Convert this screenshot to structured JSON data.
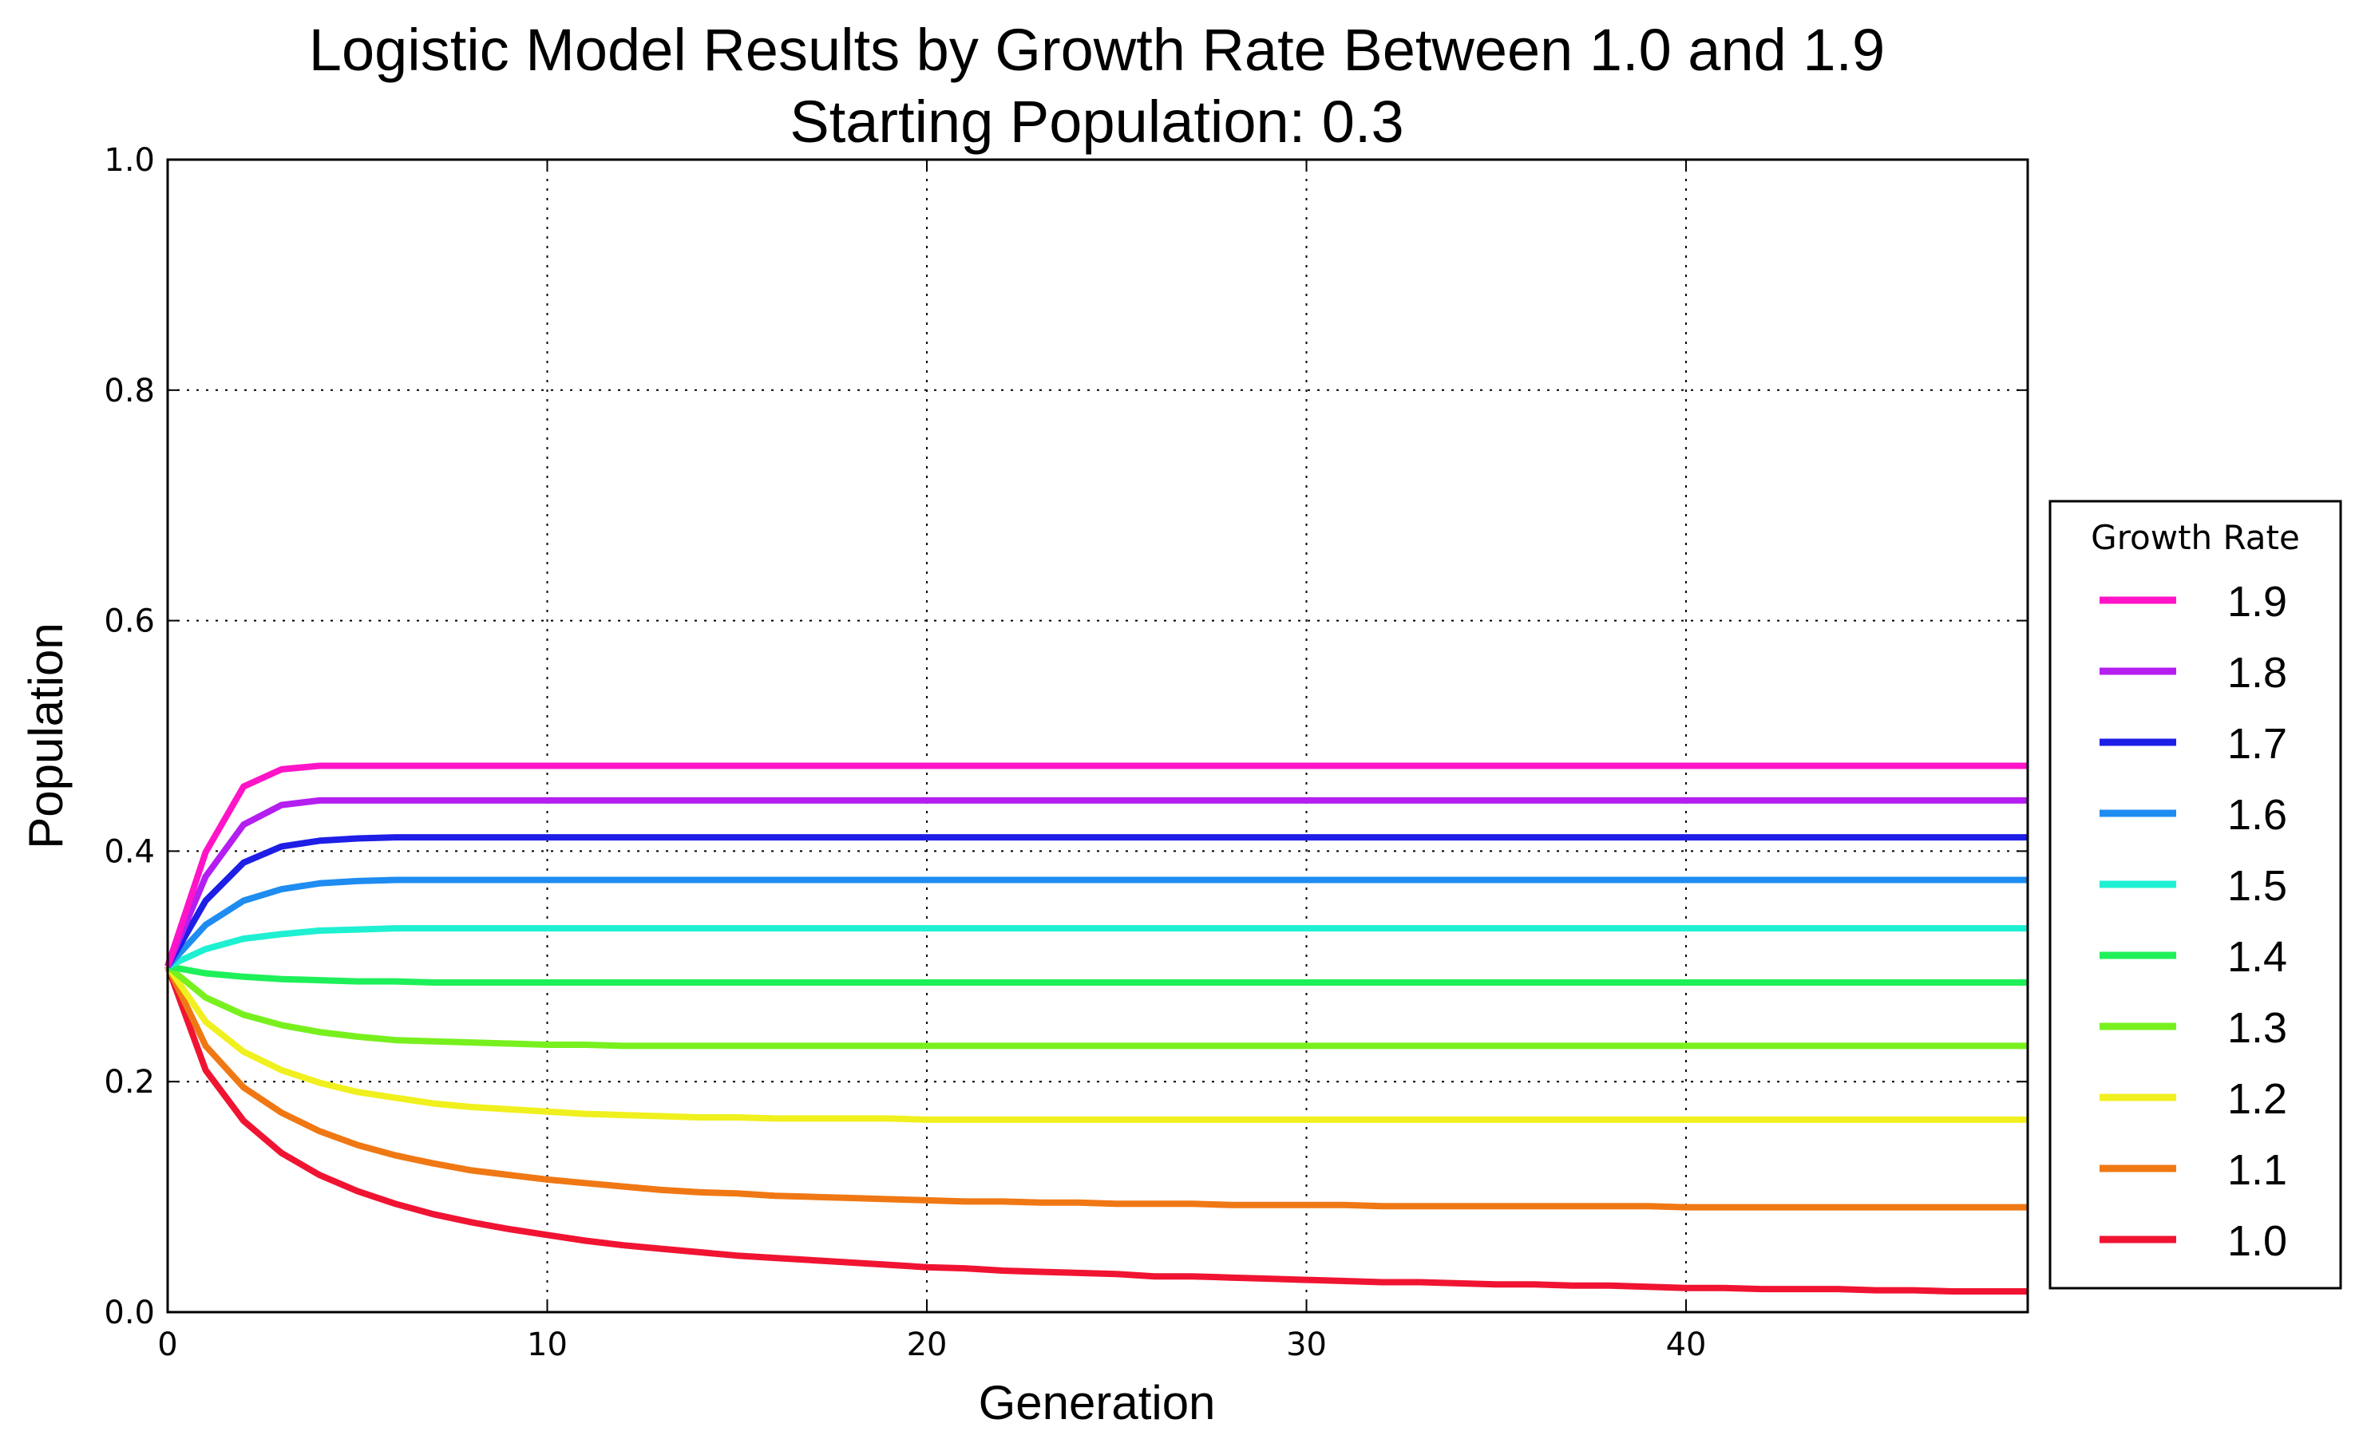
{
  "chart_data": {
    "type": "line",
    "title": "Logistic Model Results by Growth Rate Between 1.0 and 1.9",
    "subtitle": "Starting Population: 0.3",
    "xlabel": "Generation",
    "ylabel": "Population",
    "xlim": [
      0,
      49
    ],
    "ylim": [
      0.0,
      1.0
    ],
    "xticks": [
      "0",
      "10",
      "20",
      "30",
      "40"
    ],
    "yticks": [
      "0.0",
      "0.2",
      "0.4",
      "0.6",
      "0.8",
      "1.0"
    ],
    "grid": true,
    "legend": {
      "title": "Growth Rate",
      "placement": "right"
    },
    "x": [
      0,
      1,
      2,
      3,
      4,
      5,
      6,
      7,
      8,
      9,
      10,
      11,
      12,
      13,
      14,
      15,
      16,
      17,
      18,
      19,
      20,
      21,
      22,
      23,
      24,
      25,
      26,
      27,
      28,
      29,
      30,
      31,
      32,
      33,
      34,
      35,
      36,
      37,
      38,
      39,
      40,
      41,
      42,
      43,
      44,
      45,
      46,
      47,
      48,
      49
    ],
    "series": [
      {
        "name": "1.9",
        "color": "#ff14c8",
        "values": [
          0.3,
          0.399,
          0.456,
          0.471,
          0.474,
          0.474,
          0.474,
          0.474,
          0.474,
          0.474,
          0.474,
          0.474,
          0.474,
          0.474,
          0.474,
          0.474,
          0.474,
          0.474,
          0.474,
          0.474,
          0.474,
          0.474,
          0.474,
          0.474,
          0.474,
          0.474,
          0.474,
          0.474,
          0.474,
          0.474,
          0.474,
          0.474,
          0.474,
          0.474,
          0.474,
          0.474,
          0.474,
          0.474,
          0.474,
          0.474,
          0.474,
          0.474,
          0.474,
          0.474,
          0.474,
          0.474,
          0.474,
          0.474,
          0.474,
          0.474
        ]
      },
      {
        "name": "1.8",
        "color": "#b41ef0",
        "values": [
          0.3,
          0.378,
          0.423,
          0.44,
          0.444,
          0.444,
          0.444,
          0.444,
          0.444,
          0.444,
          0.444,
          0.444,
          0.444,
          0.444,
          0.444,
          0.444,
          0.444,
          0.444,
          0.444,
          0.444,
          0.444,
          0.444,
          0.444,
          0.444,
          0.444,
          0.444,
          0.444,
          0.444,
          0.444,
          0.444,
          0.444,
          0.444,
          0.444,
          0.444,
          0.444,
          0.444,
          0.444,
          0.444,
          0.444,
          0.444,
          0.444,
          0.444,
          0.444,
          0.444,
          0.444,
          0.444,
          0.444,
          0.444,
          0.444,
          0.444
        ]
      },
      {
        "name": "1.7",
        "color": "#1e1ee6",
        "values": [
          0.3,
          0.357,
          0.39,
          0.404,
          0.409,
          0.411,
          0.412,
          0.412,
          0.412,
          0.412,
          0.412,
          0.412,
          0.412,
          0.412,
          0.412,
          0.412,
          0.412,
          0.412,
          0.412,
          0.412,
          0.412,
          0.412,
          0.412,
          0.412,
          0.412,
          0.412,
          0.412,
          0.412,
          0.412,
          0.412,
          0.412,
          0.412,
          0.412,
          0.412,
          0.412,
          0.412,
          0.412,
          0.412,
          0.412,
          0.412,
          0.412,
          0.412,
          0.412,
          0.412,
          0.412,
          0.412,
          0.412,
          0.412,
          0.412,
          0.412
        ]
      },
      {
        "name": "1.6",
        "color": "#1e8cf0",
        "values": [
          0.3,
          0.336,
          0.357,
          0.367,
          0.372,
          0.374,
          0.375,
          0.375,
          0.375,
          0.375,
          0.375,
          0.375,
          0.375,
          0.375,
          0.375,
          0.375,
          0.375,
          0.375,
          0.375,
          0.375,
          0.375,
          0.375,
          0.375,
          0.375,
          0.375,
          0.375,
          0.375,
          0.375,
          0.375,
          0.375,
          0.375,
          0.375,
          0.375,
          0.375,
          0.375,
          0.375,
          0.375,
          0.375,
          0.375,
          0.375,
          0.375,
          0.375,
          0.375,
          0.375,
          0.375,
          0.375,
          0.375,
          0.375,
          0.375,
          0.375
        ]
      },
      {
        "name": "1.5",
        "color": "#1ef0d2",
        "values": [
          0.3,
          0.315,
          0.324,
          0.328,
          0.331,
          0.332,
          0.333,
          0.333,
          0.333,
          0.333,
          0.333,
          0.333,
          0.333,
          0.333,
          0.333,
          0.333,
          0.333,
          0.333,
          0.333,
          0.333,
          0.333,
          0.333,
          0.333,
          0.333,
          0.333,
          0.333,
          0.333,
          0.333,
          0.333,
          0.333,
          0.333,
          0.333,
          0.333,
          0.333,
          0.333,
          0.333,
          0.333,
          0.333,
          0.333,
          0.333,
          0.333,
          0.333,
          0.333,
          0.333,
          0.333,
          0.333,
          0.333,
          0.333,
          0.333,
          0.333
        ]
      },
      {
        "name": "1.4",
        "color": "#1ef05a",
        "values": [
          0.3,
          0.294,
          0.291,
          0.289,
          0.288,
          0.287,
          0.287,
          0.286,
          0.286,
          0.286,
          0.286,
          0.286,
          0.286,
          0.286,
          0.286,
          0.286,
          0.286,
          0.286,
          0.286,
          0.286,
          0.286,
          0.286,
          0.286,
          0.286,
          0.286,
          0.286,
          0.286,
          0.286,
          0.286,
          0.286,
          0.286,
          0.286,
          0.286,
          0.286,
          0.286,
          0.286,
          0.286,
          0.286,
          0.286,
          0.286,
          0.286,
          0.286,
          0.286,
          0.286,
          0.286,
          0.286,
          0.286,
          0.286,
          0.286,
          0.286
        ]
      },
      {
        "name": "1.3",
        "color": "#78f01e",
        "values": [
          0.3,
          0.273,
          0.258,
          0.249,
          0.243,
          0.239,
          0.236,
          0.235,
          0.234,
          0.233,
          0.232,
          0.232,
          0.231,
          0.231,
          0.231,
          0.231,
          0.231,
          0.231,
          0.231,
          0.231,
          0.231,
          0.231,
          0.231,
          0.231,
          0.231,
          0.231,
          0.231,
          0.231,
          0.231,
          0.231,
          0.231,
          0.231,
          0.231,
          0.231,
          0.231,
          0.231,
          0.231,
          0.231,
          0.231,
          0.231,
          0.231,
          0.231,
          0.231,
          0.231,
          0.231,
          0.231,
          0.231,
          0.231,
          0.231,
          0.231
        ]
      },
      {
        "name": "1.2",
        "color": "#f0f01e",
        "values": [
          0.3,
          0.252,
          0.226,
          0.21,
          0.199,
          0.191,
          0.186,
          0.181,
          0.178,
          0.176,
          0.174,
          0.172,
          0.171,
          0.17,
          0.169,
          0.169,
          0.168,
          0.168,
          0.168,
          0.168,
          0.167,
          0.167,
          0.167,
          0.167,
          0.167,
          0.167,
          0.167,
          0.167,
          0.167,
          0.167,
          0.167,
          0.167,
          0.167,
          0.167,
          0.167,
          0.167,
          0.167,
          0.167,
          0.167,
          0.167,
          0.167,
          0.167,
          0.167,
          0.167,
          0.167,
          0.167,
          0.167,
          0.167,
          0.167,
          0.167
        ]
      },
      {
        "name": "1.1",
        "color": "#f07814",
        "values": [
          0.3,
          0.231,
          0.195,
          0.173,
          0.157,
          0.145,
          0.136,
          0.129,
          0.123,
          0.119,
          0.115,
          0.112,
          0.109,
          0.106,
          0.104,
          0.103,
          0.101,
          0.1,
          0.099,
          0.098,
          0.097,
          0.096,
          0.096,
          0.095,
          0.095,
          0.094,
          0.094,
          0.094,
          0.093,
          0.093,
          0.093,
          0.093,
          0.092,
          0.092,
          0.092,
          0.092,
          0.092,
          0.092,
          0.092,
          0.092,
          0.091,
          0.091,
          0.091,
          0.091,
          0.091,
          0.091,
          0.091,
          0.091,
          0.091,
          0.091
        ]
      },
      {
        "name": "1.0",
        "color": "#f01432",
        "values": [
          0.3,
          0.21,
          0.166,
          0.138,
          0.119,
          0.105,
          0.094,
          0.085,
          0.078,
          0.072,
          0.067,
          0.062,
          0.058,
          0.055,
          0.052,
          0.049,
          0.047,
          0.045,
          0.043,
          0.041,
          0.039,
          0.038,
          0.036,
          0.035,
          0.034,
          0.033,
          0.031,
          0.031,
          0.03,
          0.029,
          0.028,
          0.027,
          0.026,
          0.026,
          0.025,
          0.024,
          0.024,
          0.023,
          0.023,
          0.022,
          0.021,
          0.021,
          0.02,
          0.02,
          0.02,
          0.019,
          0.019,
          0.018,
          0.018,
          0.018
        ]
      }
    ]
  }
}
